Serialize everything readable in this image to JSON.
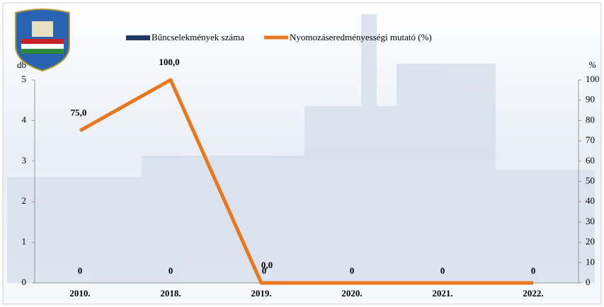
{
  "chart_data": {
    "type": "bar-line",
    "categories": [
      "2010.",
      "2018.",
      "2019.",
      "2020.",
      "2021.",
      "2022."
    ],
    "ylabel": "db",
    "y2label": "%",
    "ylim": [
      0,
      5
    ],
    "yticks": [
      0,
      1,
      2,
      3,
      4,
      5
    ],
    "y2lim": [
      0,
      100
    ],
    "y2ticks": [
      0,
      10,
      20,
      30,
      40,
      50,
      60,
      70,
      80,
      90,
      100
    ],
    "legend": "top",
    "series": [
      {
        "name": "Bűncselekmények száma",
        "type": "bar",
        "color": "#1f3864",
        "values": [
          0,
          0,
          0,
          0,
          0,
          0
        ]
      },
      {
        "name": "Nyomozáseredményességi mutató (%)",
        "type": "line",
        "axis": "y2",
        "color": "#e8771e",
        "values": [
          75,
          100,
          0,
          0,
          0,
          0
        ],
        "value_labels": [
          "75,0",
          "100,0",
          "0,0",
          null,
          null,
          null
        ]
      }
    ]
  }
}
